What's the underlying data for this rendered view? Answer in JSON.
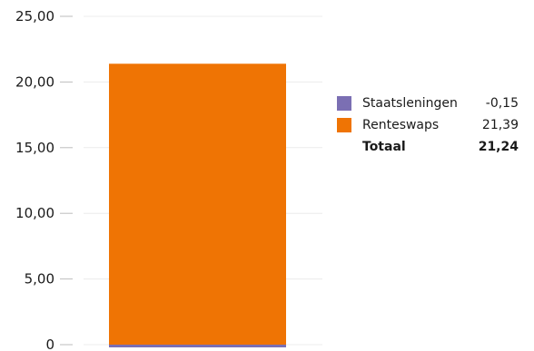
{
  "chart_data": {
    "type": "bar",
    "stacked": true,
    "categories": [
      ""
    ],
    "series": [
      {
        "name": "Staatsleningen",
        "values": [
          -0.15
        ],
        "color": "#7b6fb3"
      },
      {
        "name": "Renteswaps",
        "values": [
          21.39
        ],
        "color": "#ef7404"
      }
    ],
    "ylim": [
      0,
      25
    ],
    "yticks": [
      0,
      5,
      10,
      15,
      20,
      25
    ],
    "ytick_labels": [
      "0",
      "5,00",
      "10,00",
      "15,00",
      "20,00",
      "25,00"
    ],
    "grid": true,
    "legend_position": "right"
  },
  "legend": {
    "items": [
      {
        "name": "Staatsleningen",
        "value": "-0,15",
        "color": "#7b6fb3"
      },
      {
        "name": "Renteswaps",
        "value": "21,39",
        "color": "#ef7404"
      }
    ],
    "total_label": "Totaal",
    "total_value": "21,24"
  }
}
